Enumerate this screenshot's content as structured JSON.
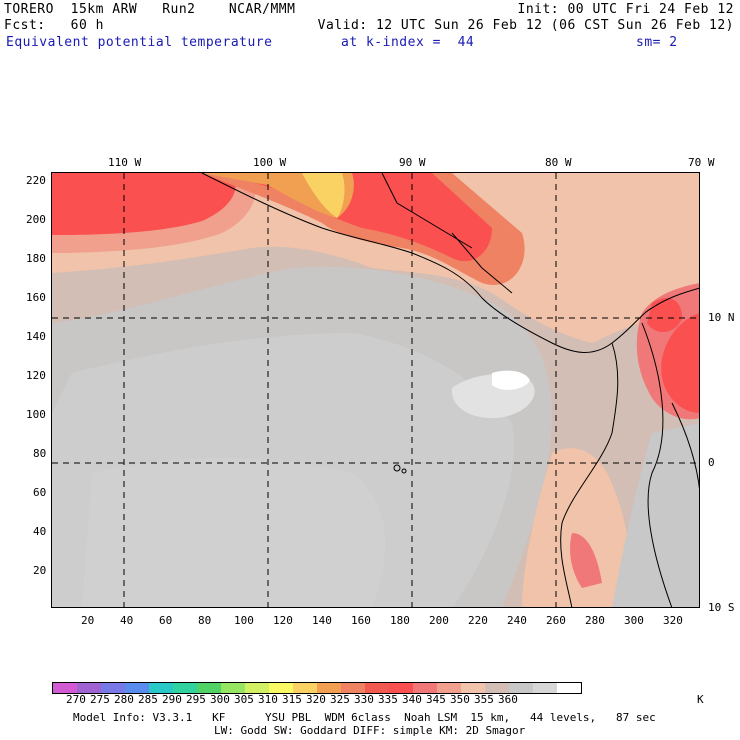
{
  "header": {
    "line1_left": "TORERO  15km ARW   Run2    NCAR/MMM",
    "line1_right": "Init: 00 UTC Fri 24 Feb 12",
    "line2_left": "Fcst:   60 h",
    "line2_right": "Valid: 12 UTC Sun 26 Feb 12 (06 CST Sun 26 Feb 12)",
    "field_name": "Equivalent potential temperature",
    "level": "at k-index =  44",
    "smoothing": "sm= 2"
  },
  "top_lon_labels": [
    "110 W",
    "100 W",
    "90 W",
    "80 W",
    "70 W"
  ],
  "right_lat_labels": [
    "10 N",
    "0",
    "10 S"
  ],
  "y_axis_labels": [
    "220",
    "200",
    "180",
    "160",
    "140",
    "120",
    "100",
    "80",
    "60",
    "40",
    "20"
  ],
  "x_axis_labels": [
    "20",
    "40",
    "60",
    "80",
    "100",
    "120",
    "140",
    "160",
    "180",
    "200",
    "220",
    "240",
    "260",
    "280",
    "300",
    "320"
  ],
  "colorbar": {
    "colors": [
      "#d25ad2",
      "#a064d2",
      "#7878e6",
      "#5a8cf0",
      "#28c8c8",
      "#32d2a0",
      "#50d264",
      "#96e664",
      "#d2f064",
      "#fafa64",
      "#fad264",
      "#f0a050",
      "#f08264",
      "#f05a50",
      "#fa5050",
      "#f07878",
      "#f0a08c",
      "#f0c3aa",
      "#d2beb4",
      "#c8c8c8",
      "#d7d7d7",
      "#ffffff"
    ],
    "tick_labels": [
      "270",
      "275",
      "280",
      "285",
      "290",
      "295",
      "300",
      "305",
      "310",
      "315",
      "320",
      "325",
      "330",
      "335",
      "340",
      "345",
      "350",
      "355",
      "360"
    ],
    "unit": "K"
  },
  "footer": {
    "line1": "Model Info: V3.3.1   KF      YSU PBL  WDM 6class  Noah LSM  15 km,   44 levels,   87 sec",
    "line2": "LW: Godd SW: Goddard DIFF: simple KM: 2D Smagor"
  }
}
